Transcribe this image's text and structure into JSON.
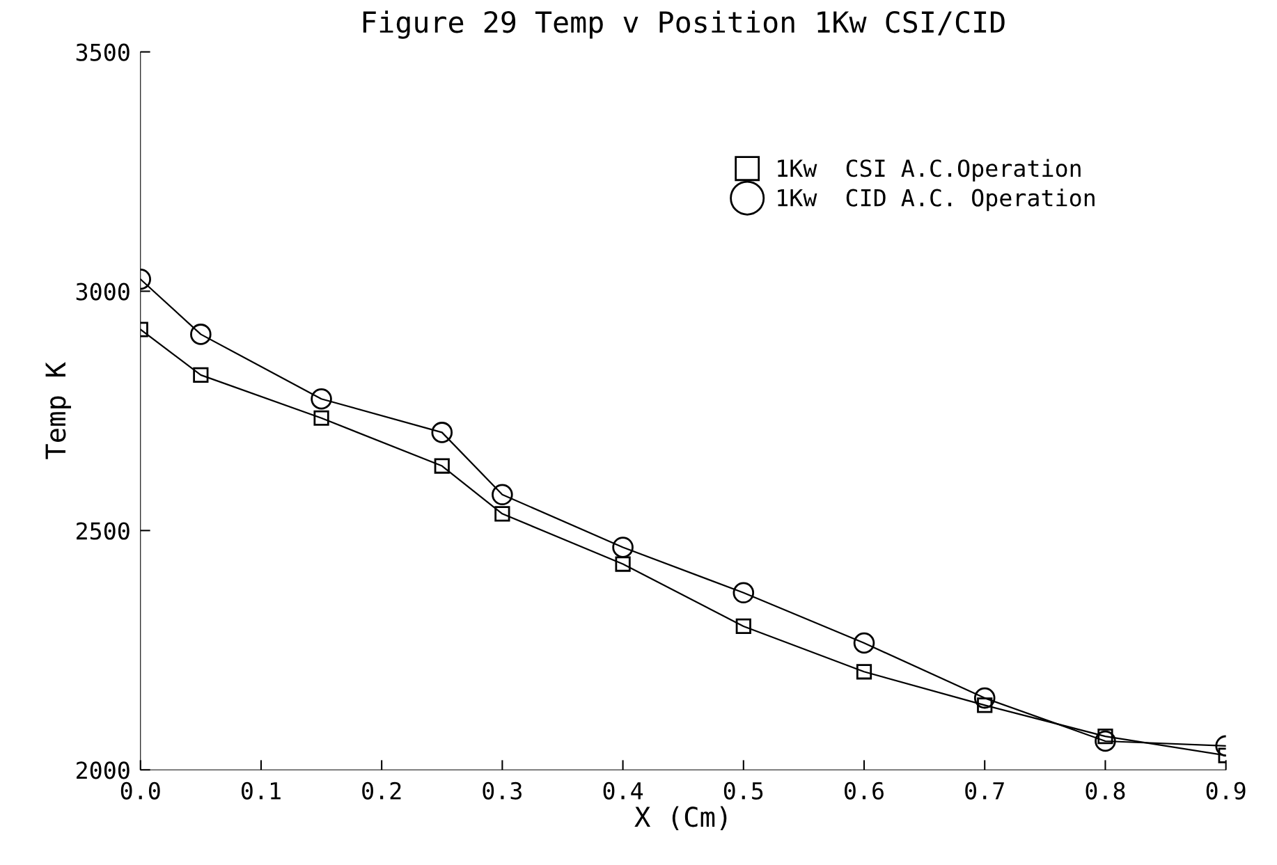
{
  "chart_data": {
    "type": "line",
    "title": "Figure 29 Temp v Position 1Kw CSI/CID",
    "xlabel": "X (Cm)",
    "ylabel": "Temp K",
    "x": [
      0.0,
      0.05,
      0.15,
      0.25,
      0.3,
      0.4,
      0.5,
      0.6,
      0.7,
      0.8,
      0.9
    ],
    "series": [
      {
        "name": "1Kw  CSI A.C.Operation",
        "color": "#000000",
        "marker": "square",
        "values": [
          2920,
          2825,
          2735,
          2635,
          2535,
          2430,
          2300,
          2205,
          2135,
          2070,
          2030
        ]
      },
      {
        "name": "1Kw  CID A.C. Operation",
        "color": "#000000",
        "marker": "circle",
        "values": [
          3025,
          2910,
          2775,
          2705,
          2575,
          2465,
          2370,
          2265,
          2150,
          2060,
          2050
        ]
      }
    ],
    "xlim": [
      0.0,
      0.9
    ],
    "ylim": [
      2000,
      3500
    ],
    "xticks": [
      {
        "value": 0.0,
        "label": "0.0"
      },
      0.1,
      0.2,
      0.3,
      0.4,
      0.5,
      0.6,
      0.7,
      0.8,
      0.9
    ],
    "yticks": [
      2000,
      2500,
      3000,
      3500
    ],
    "legend": "top right",
    "line_style": "solid"
  }
}
